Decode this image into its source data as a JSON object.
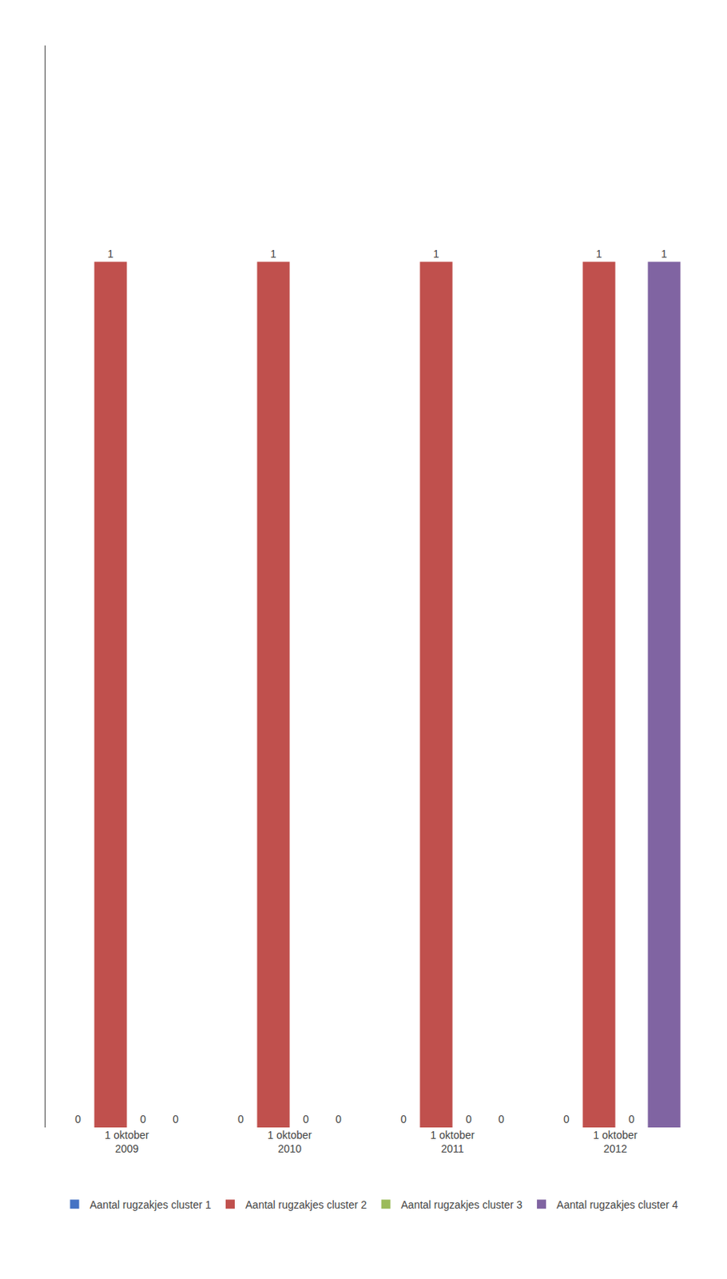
{
  "chart_data": {
    "type": "bar",
    "categories": [
      "1 oktober\n2009",
      "1 oktober\n2010",
      "1 oktober\n2011",
      "1 oktober\n2012"
    ],
    "series": [
      {
        "name": "Aantal rugzakjes cluster 1",
        "color": "#4472c4",
        "values": [
          0,
          0,
          0,
          0
        ]
      },
      {
        "name": "Aantal rugzakjes cluster 2",
        "color": "#c0504d",
        "values": [
          1,
          1,
          1,
          1
        ]
      },
      {
        "name": "Aantal rugzakjes cluster 3",
        "color": "#9bbb59",
        "values": [
          0,
          0,
          0,
          0
        ]
      },
      {
        "name": "Aantal rugzakjes cluster 4",
        "color": "#8064a2",
        "values": [
          0,
          0,
          0,
          1
        ]
      }
    ],
    "ylim": [
      0,
      1.25
    ],
    "tick_labels": "x",
    "grid": false,
    "legend": "bottom",
    "data_labels": true
  }
}
